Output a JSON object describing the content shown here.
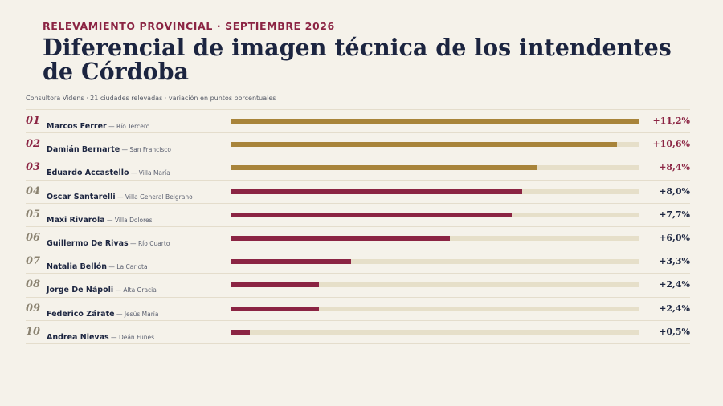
{
  "header": {
    "kicker": "RELEVAMIENTO PROVINCIAL · SEPTIEMBRE 2026",
    "title": "Diferencial de imagen técnica de los intendentes de Córdoba",
    "subtitle": "Consultora Videns · 21 ciudades relevadas · variación en puntos porcentuales"
  },
  "colors": {
    "gold": "#a8843a",
    "crimson": "#8b2443",
    "navy": "#1c2540",
    "track": "#e6dfc9"
  },
  "chart_data": {
    "type": "bar",
    "orientation": "horizontal",
    "title": "Diferencial de imagen técnica de los intendentes de Córdoba",
    "xlim": [
      0,
      11.2
    ],
    "grid": false,
    "rows": [
      {
        "rank": "01",
        "name": "Marcos Ferrer",
        "place": "Río Tercero",
        "value": 11.2,
        "label": "+11,2%",
        "highlight": true
      },
      {
        "rank": "02",
        "name": "Damián Bernarte",
        "place": "San Francisco",
        "value": 10.6,
        "label": "+10,6%",
        "highlight": true
      },
      {
        "rank": "03",
        "name": "Eduardo Accastello",
        "place": "Villa María",
        "value": 8.4,
        "label": "+8,4%",
        "highlight": true
      },
      {
        "rank": "04",
        "name": "Oscar Santarelli",
        "place": "Villa General Belgrano",
        "value": 8.0,
        "label": "+8,0%",
        "highlight": false
      },
      {
        "rank": "05",
        "name": "Maxi Rivarola",
        "place": "Villa Dolores",
        "value": 7.7,
        "label": "+7,7%",
        "highlight": false
      },
      {
        "rank": "06",
        "name": "Guillermo De Rivas",
        "place": "Río Cuarto",
        "value": 6.0,
        "label": "+6,0%",
        "highlight": false
      },
      {
        "rank": "07",
        "name": "Natalia Bellón",
        "place": "La Carlota",
        "value": 3.3,
        "label": "+3,3%",
        "highlight": false
      },
      {
        "rank": "08",
        "name": "Jorge De Nápoli",
        "place": "Alta Gracia",
        "value": 2.4,
        "label": "+2,4%",
        "highlight": false
      },
      {
        "rank": "09",
        "name": "Federico Zárate",
        "place": "Jesús María",
        "value": 2.4,
        "label": "+2,4%",
        "highlight": false
      },
      {
        "rank": "10",
        "name": "Andrea Nievas",
        "place": "Deán Funes",
        "value": 0.5,
        "label": "+0,5%",
        "highlight": false
      }
    ]
  }
}
